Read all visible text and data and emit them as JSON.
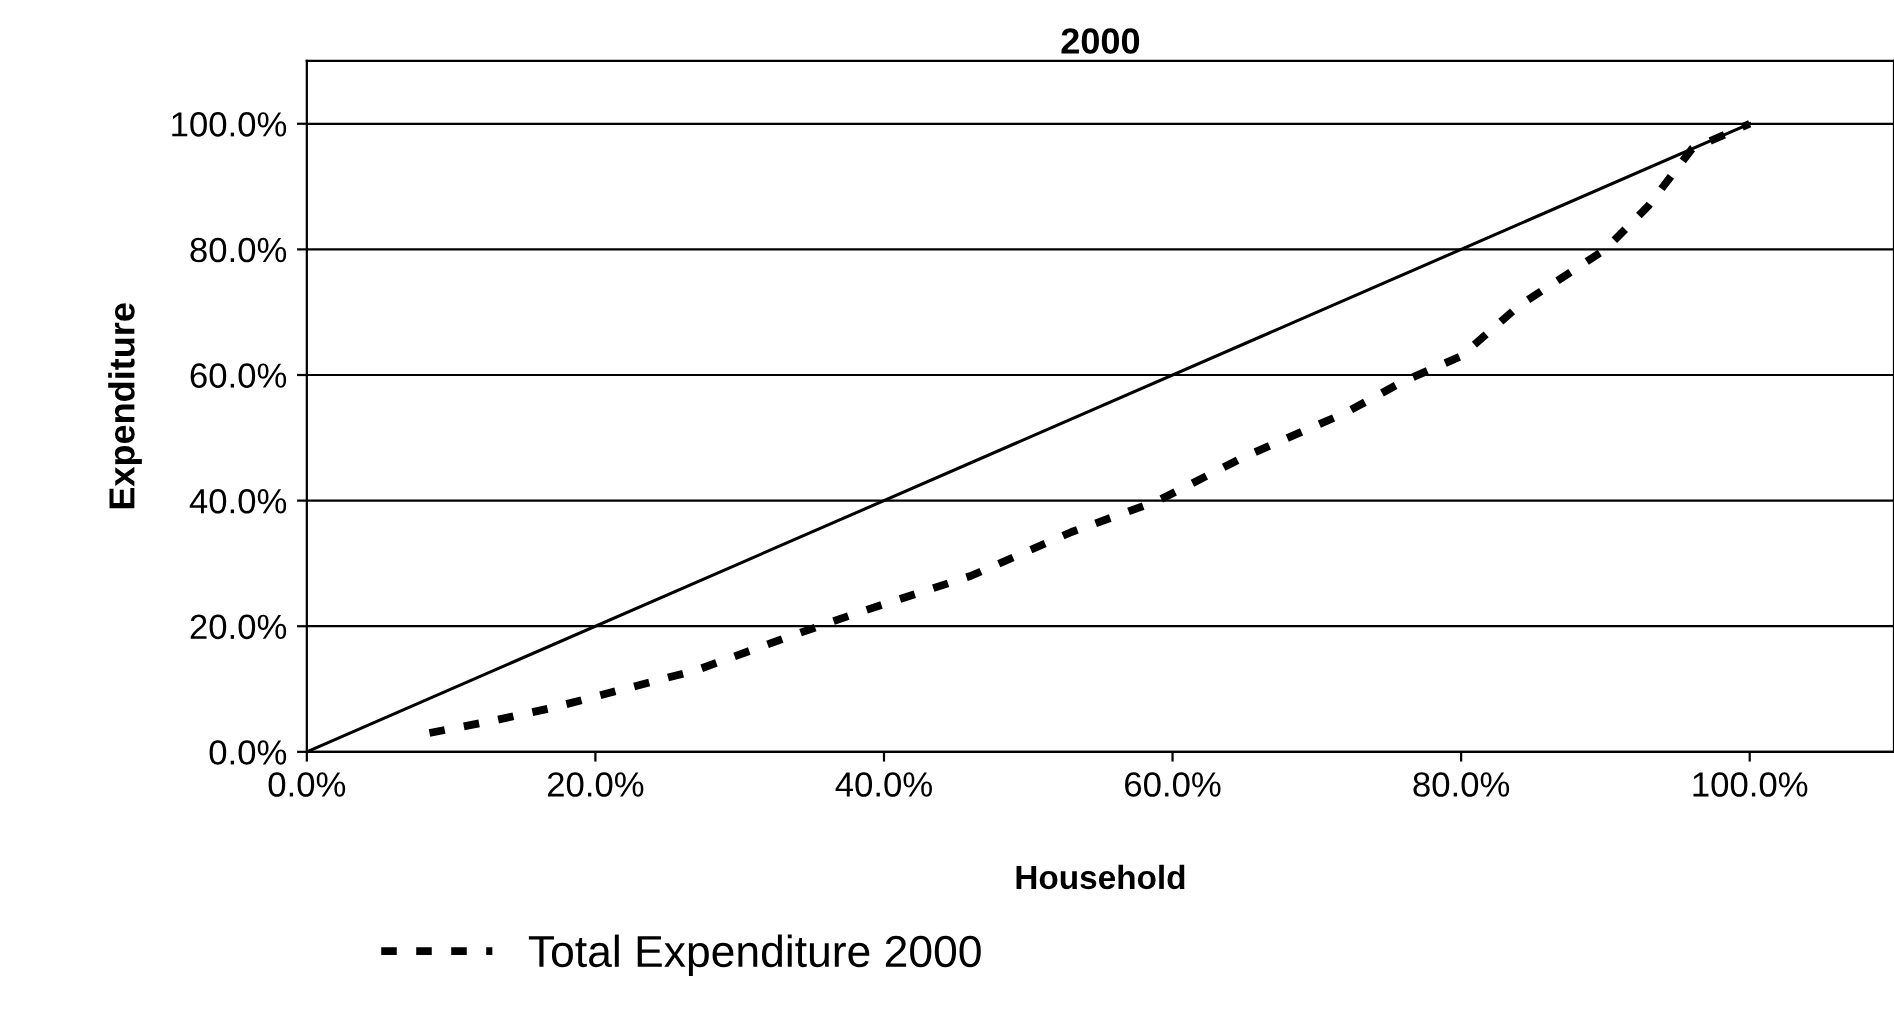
{
  "chart_data": {
    "type": "line",
    "title": "2000",
    "xlabel": "Household",
    "ylabel": "Expenditure",
    "xlim": [
      0,
      110
    ],
    "ylim": [
      0,
      110
    ],
    "xticks": [
      {
        "value": 0,
        "label": "0.0%"
      },
      {
        "value": 20,
        "label": "20.0%"
      },
      {
        "value": 40,
        "label": "40.0%"
      },
      {
        "value": 60,
        "label": "60.0%"
      },
      {
        "value": 80,
        "label": "80.0%"
      },
      {
        "value": 100,
        "label": "100.0%"
      }
    ],
    "yticks": [
      {
        "value": 0,
        "label": "0.0%"
      },
      {
        "value": 20,
        "label": "20.0%"
      },
      {
        "value": 40,
        "label": "40.0%"
      },
      {
        "value": 60,
        "label": "60.0%"
      },
      {
        "value": 80,
        "label": "80.0%"
      },
      {
        "value": 100,
        "label": "100.0%"
      }
    ],
    "grid": "y",
    "legend": "bottom",
    "marker": "none",
    "series": [
      {
        "color": "#000000",
        "line_style": "solid",
        "x": [
          0,
          100
        ],
        "values": [
          0,
          100
        ]
      },
      {
        "name": "Total Expenditure 2000",
        "color": "#000000",
        "line_style": "dashed",
        "x": [
          8.5,
          13,
          17,
          22,
          27,
          33,
          38,
          46,
          53,
          59,
          65,
          72,
          76,
          80,
          84,
          90,
          93,
          96,
          100
        ],
        "values": [
          3,
          5,
          7,
          10,
          13,
          18,
          22,
          28,
          35,
          40,
          47,
          54,
          59,
          63,
          71,
          80,
          87,
          96,
          100
        ]
      }
    ]
  }
}
